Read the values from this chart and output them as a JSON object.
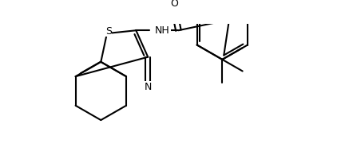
{
  "bg_color": "#ffffff",
  "line_color": "#000000",
  "line_width": 1.5,
  "font_size": 9,
  "figsize": [
    4.32,
    1.95
  ],
  "dpi": 100,
  "xlim": [
    0.0,
    8.5
  ],
  "ylim": [
    -1.0,
    3.5
  ]
}
